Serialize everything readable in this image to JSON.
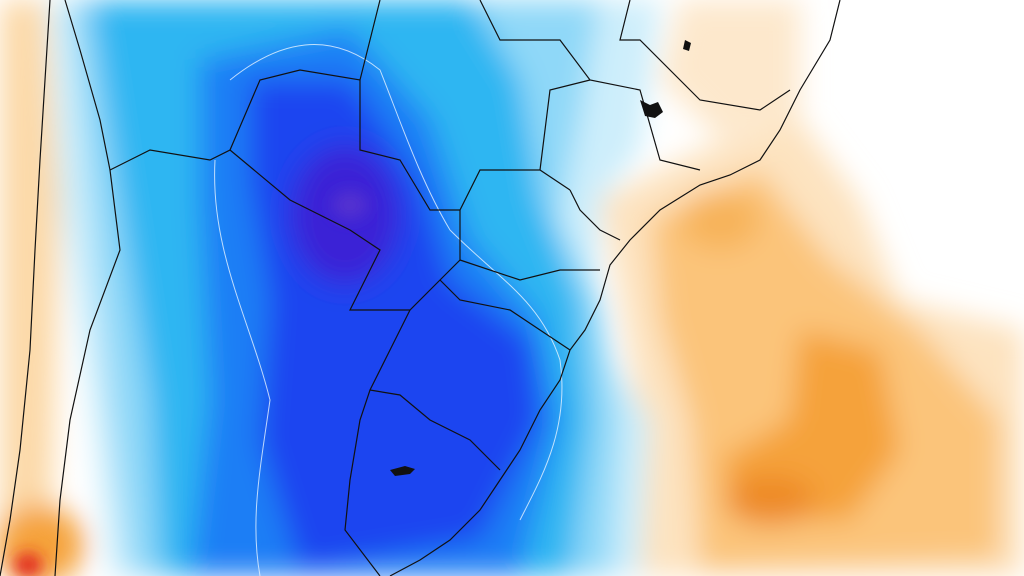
{
  "map": {
    "colors": {
      "background": "#ffffff",
      "light_orange": "#fde3c0",
      "orange": "#fbc47a",
      "deep_orange": "#f5a23a",
      "dark_orange": "#ee7f1e",
      "red": "#e0201a",
      "pale_blue": "#cdeefb",
      "light_blue": "#8fd8f8",
      "cyan": "#2fb6f2",
      "blue": "#1d7ef5",
      "dark_blue": "#1f45f0",
      "indigo": "#3a22d6",
      "border_line": "#111111",
      "contour_line": "#e8f4ff"
    }
  }
}
